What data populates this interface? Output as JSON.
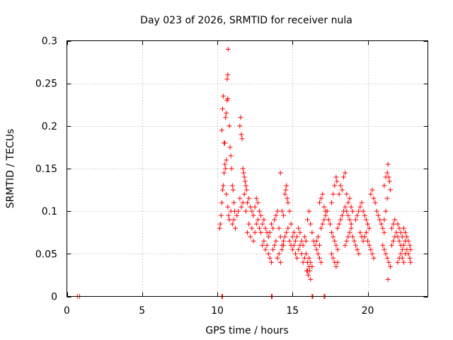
{
  "chart_data": {
    "type": "scatter",
    "title": "Day 023 of 2026, SRMTID for receiver nula",
    "xlabel": "GPS time / hours",
    "ylabel": "SRMTID / TECUs",
    "xlim": [
      0,
      24
    ],
    "ylim": [
      0,
      0.3
    ],
    "xticks": [
      0,
      5,
      10,
      15,
      20
    ],
    "xtick_labels": [
      "0",
      "5",
      "10",
      "15",
      "20"
    ],
    "yticks": [
      0,
      0.05,
      0.1,
      0.15,
      0.2,
      0.25,
      0.3
    ],
    "ytick_labels": [
      "0",
      "0.05",
      "0.1",
      "0.15",
      "0.2",
      "0.25",
      "0.3"
    ],
    "grid": true,
    "marker": "+",
    "color": "#ff0000",
    "series": [
      {
        "name": "SRMTID",
        "points": [
          [
            0.7,
            0.0
          ],
          [
            0.85,
            0.0
          ],
          [
            10.3,
            0.0
          ],
          [
            10.35,
            0.0
          ],
          [
            13.6,
            0.0
          ],
          [
            13.65,
            0.0
          ],
          [
            16.3,
            0.0
          ],
          [
            16.35,
            0.0
          ],
          [
            17.1,
            0.0
          ],
          [
            17.15,
            0.0
          ],
          [
            10.15,
            0.08
          ],
          [
            10.2,
            0.085
          ],
          [
            10.25,
            0.095
          ],
          [
            10.3,
            0.11
          ],
          [
            10.35,
            0.125
          ],
          [
            10.4,
            0.13
          ],
          [
            10.45,
            0.145
          ],
          [
            10.5,
            0.155
          ],
          [
            10.55,
            0.15
          ],
          [
            10.6,
            0.16
          ],
          [
            10.3,
            0.195
          ],
          [
            10.35,
            0.22
          ],
          [
            10.4,
            0.235
          ],
          [
            10.45,
            0.18
          ],
          [
            10.5,
            0.18
          ],
          [
            10.55,
            0.21
          ],
          [
            10.6,
            0.215
          ],
          [
            10.65,
            0.23
          ],
          [
            10.7,
            0.232
          ],
          [
            10.65,
            0.255
          ],
          [
            10.7,
            0.26
          ],
          [
            10.72,
            0.29
          ],
          [
            10.8,
            0.2
          ],
          [
            10.85,
            0.175
          ],
          [
            10.9,
            0.165
          ],
          [
            10.95,
            0.15
          ],
          [
            11.0,
            0.13
          ],
          [
            11.05,
            0.125
          ],
          [
            11.1,
            0.11
          ],
          [
            11.15,
            0.1
          ],
          [
            10.6,
            0.12
          ],
          [
            10.7,
            0.105
          ],
          [
            10.75,
            0.095
          ],
          [
            10.8,
            0.09
          ],
          [
            10.9,
            0.1
          ],
          [
            11.0,
            0.085
          ],
          [
            11.1,
            0.09
          ],
          [
            11.2,
            0.08
          ],
          [
            11.3,
            0.095
          ],
          [
            11.4,
            0.1
          ],
          [
            11.5,
            0.2
          ],
          [
            11.55,
            0.21
          ],
          [
            11.6,
            0.19
          ],
          [
            11.65,
            0.185
          ],
          [
            11.7,
            0.15
          ],
          [
            11.75,
            0.145
          ],
          [
            11.8,
            0.14
          ],
          [
            11.85,
            0.135
          ],
          [
            11.9,
            0.13
          ],
          [
            11.95,
            0.125
          ],
          [
            11.5,
            0.115
          ],
          [
            11.6,
            0.105
          ],
          [
            11.7,
            0.11
          ],
          [
            11.8,
            0.12
          ],
          [
            11.9,
            0.1
          ],
          [
            12.0,
            0.11
          ],
          [
            12.1,
            0.115
          ],
          [
            12.2,
            0.105
          ],
          [
            12.3,
            0.1
          ],
          [
            12.4,
            0.095
          ],
          [
            12.0,
            0.075
          ],
          [
            12.1,
            0.085
          ],
          [
            12.2,
            0.07
          ],
          [
            12.3,
            0.08
          ],
          [
            12.4,
            0.065
          ],
          [
            12.5,
            0.075
          ],
          [
            12.6,
            0.085
          ],
          [
            12.7,
            0.09
          ],
          [
            12.8,
            0.08
          ],
          [
            12.9,
            0.075
          ],
          [
            12.5,
            0.105
          ],
          [
            12.6,
            0.115
          ],
          [
            12.7,
            0.11
          ],
          [
            12.8,
            0.1
          ],
          [
            12.9,
            0.095
          ],
          [
            13.0,
            0.085
          ],
          [
            13.1,
            0.09
          ],
          [
            13.2,
            0.08
          ],
          [
            13.3,
            0.075
          ],
          [
            13.4,
            0.07
          ],
          [
            13.0,
            0.06
          ],
          [
            13.1,
            0.065
          ],
          [
            13.2,
            0.055
          ],
          [
            13.3,
            0.06
          ],
          [
            13.4,
            0.05
          ],
          [
            13.5,
            0.045
          ],
          [
            13.6,
            0.04
          ],
          [
            13.7,
            0.055
          ],
          [
            13.8,
            0.06
          ],
          [
            13.9,
            0.065
          ],
          [
            13.5,
            0.075
          ],
          [
            13.6,
            0.085
          ],
          [
            13.7,
            0.08
          ],
          [
            13.8,
            0.09
          ],
          [
            13.9,
            0.095
          ],
          [
            14.0,
            0.1
          ],
          [
            14.1,
            0.08
          ],
          [
            14.2,
            0.07
          ],
          [
            14.3,
            0.06
          ],
          [
            14.4,
            0.065
          ],
          [
            14.0,
            0.045
          ],
          [
            14.1,
            0.05
          ],
          [
            14.2,
            0.04
          ],
          [
            14.3,
            0.055
          ],
          [
            14.4,
            0.06
          ],
          [
            14.5,
            0.07
          ],
          [
            14.6,
            0.075
          ],
          [
            14.7,
            0.08
          ],
          [
            14.8,
            0.065
          ],
          [
            14.9,
            0.06
          ],
          [
            14.5,
            0.12
          ],
          [
            14.55,
            0.125
          ],
          [
            14.6,
            0.13
          ],
          [
            14.65,
            0.115
          ],
          [
            14.7,
            0.11
          ],
          [
            14.2,
            0.145
          ],
          [
            14.3,
            0.1
          ],
          [
            14.4,
            0.095
          ],
          [
            14.8,
            0.1
          ],
          [
            14.9,
            0.085
          ],
          [
            15.0,
            0.055
          ],
          [
            15.1,
            0.06
          ],
          [
            15.2,
            0.05
          ],
          [
            15.3,
            0.045
          ],
          [
            15.4,
            0.055
          ],
          [
            15.5,
            0.06
          ],
          [
            15.6,
            0.05
          ],
          [
            15.7,
            0.04
          ],
          [
            15.8,
            0.045
          ],
          [
            15.9,
            0.05
          ],
          [
            15.0,
            0.07
          ],
          [
            15.1,
            0.075
          ],
          [
            15.2,
            0.065
          ],
          [
            15.3,
            0.07
          ],
          [
            15.4,
            0.08
          ],
          [
            15.5,
            0.075
          ],
          [
            15.6,
            0.065
          ],
          [
            15.7,
            0.06
          ],
          [
            15.8,
            0.07
          ],
          [
            15.9,
            0.065
          ],
          [
            16.0,
            0.03
          ],
          [
            16.05,
            0.025
          ],
          [
            16.1,
            0.035
          ],
          [
            16.15,
            0.03
          ],
          [
            16.2,
            0.02
          ],
          [
            16.0,
            0.04
          ],
          [
            16.1,
            0.045
          ],
          [
            16.2,
            0.04
          ],
          [
            16.3,
            0.035
          ],
          [
            15.95,
            0.03
          ],
          [
            16.0,
            0.09
          ],
          [
            16.1,
            0.1
          ],
          [
            16.2,
            0.085
          ],
          [
            16.3,
            0.075
          ],
          [
            16.4,
            0.065
          ],
          [
            16.5,
            0.06
          ],
          [
            16.6,
            0.055
          ],
          [
            16.7,
            0.05
          ],
          [
            16.8,
            0.045
          ],
          [
            16.9,
            0.04
          ],
          [
            16.6,
            0.065
          ],
          [
            16.7,
            0.07
          ],
          [
            16.8,
            0.06
          ],
          [
            16.9,
            0.08
          ],
          [
            17.0,
            0.085
          ],
          [
            17.1,
            0.09
          ],
          [
            17.2,
            0.095
          ],
          [
            17.3,
            0.1
          ],
          [
            17.4,
            0.09
          ],
          [
            17.5,
            0.085
          ],
          [
            16.8,
            0.11
          ],
          [
            16.9,
            0.115
          ],
          [
            17.0,
            0.12
          ],
          [
            17.1,
            0.105
          ],
          [
            17.2,
            0.1
          ],
          [
            17.6,
            0.11
          ],
          [
            17.7,
            0.12
          ],
          [
            17.8,
            0.13
          ],
          [
            17.9,
            0.14
          ],
          [
            17.95,
            0.135
          ],
          [
            17.6,
            0.075
          ],
          [
            17.7,
            0.07
          ],
          [
            17.8,
            0.065
          ],
          [
            17.9,
            0.06
          ],
          [
            18.0,
            0.055
          ],
          [
            17.6,
            0.05
          ],
          [
            17.7,
            0.045
          ],
          [
            17.8,
            0.04
          ],
          [
            17.9,
            0.035
          ],
          [
            18.0,
            0.04
          ],
          [
            18.0,
            0.08
          ],
          [
            18.1,
            0.085
          ],
          [
            18.2,
            0.09
          ],
          [
            18.3,
            0.095
          ],
          [
            18.4,
            0.1
          ],
          [
            18.5,
            0.105
          ],
          [
            18.6,
            0.1
          ],
          [
            18.7,
            0.095
          ],
          [
            18.8,
            0.09
          ],
          [
            18.9,
            0.085
          ],
          [
            18.1,
            0.12
          ],
          [
            18.2,
            0.13
          ],
          [
            18.3,
            0.125
          ],
          [
            18.4,
            0.14
          ],
          [
            18.5,
            0.145
          ],
          [
            18.6,
            0.12
          ],
          [
            18.7,
            0.11
          ],
          [
            18.8,
            0.115
          ],
          [
            18.9,
            0.105
          ],
          [
            19.0,
            0.1
          ],
          [
            18.5,
            0.06
          ],
          [
            18.6,
            0.065
          ],
          [
            18.7,
            0.07
          ],
          [
            18.8,
            0.075
          ],
          [
            18.9,
            0.08
          ],
          [
            19.0,
            0.07
          ],
          [
            19.1,
            0.065
          ],
          [
            19.2,
            0.06
          ],
          [
            19.3,
            0.055
          ],
          [
            19.4,
            0.05
          ],
          [
            19.2,
            0.09
          ],
          [
            19.3,
            0.095
          ],
          [
            19.4,
            0.1
          ],
          [
            19.5,
            0.105
          ],
          [
            19.6,
            0.11
          ],
          [
            19.7,
            0.1
          ],
          [
            19.8,
            0.095
          ],
          [
            19.9,
            0.09
          ],
          [
            20.0,
            0.085
          ],
          [
            20.1,
            0.08
          ],
          [
            19.5,
            0.075
          ],
          [
            19.6,
            0.07
          ],
          [
            19.7,
            0.065
          ],
          [
            19.8,
            0.07
          ],
          [
            19.9,
            0.075
          ],
          [
            20.0,
            0.065
          ],
          [
            20.1,
            0.06
          ],
          [
            20.2,
            0.055
          ],
          [
            20.3,
            0.05
          ],
          [
            20.4,
            0.045
          ],
          [
            20.2,
            0.12
          ],
          [
            20.3,
            0.125
          ],
          [
            20.4,
            0.115
          ],
          [
            20.5,
            0.11
          ],
          [
            20.6,
            0.1
          ],
          [
            20.7,
            0.095
          ],
          [
            20.8,
            0.09
          ],
          [
            20.9,
            0.085
          ],
          [
            21.0,
            0.08
          ],
          [
            21.1,
            0.075
          ],
          [
            21.1,
            0.13
          ],
          [
            21.2,
            0.14
          ],
          [
            21.3,
            0.145
          ],
          [
            21.35,
            0.155
          ],
          [
            21.4,
            0.14
          ],
          [
            21.45,
            0.135
          ],
          [
            21.5,
            0.125
          ],
          [
            21.3,
            0.115
          ],
          [
            21.2,
            0.1
          ],
          [
            21.1,
            0.09
          ],
          [
            21.0,
            0.06
          ],
          [
            21.1,
            0.055
          ],
          [
            21.2,
            0.05
          ],
          [
            21.3,
            0.045
          ],
          [
            21.4,
            0.04
          ],
          [
            21.5,
            0.035
          ],
          [
            21.35,
            0.02
          ],
          [
            21.6,
            0.06
          ],
          [
            21.7,
            0.065
          ],
          [
            21.8,
            0.07
          ],
          [
            21.6,
            0.08
          ],
          [
            21.7,
            0.085
          ],
          [
            21.8,
            0.09
          ],
          [
            21.9,
            0.075
          ],
          [
            22.0,
            0.07
          ],
          [
            22.1,
            0.065
          ],
          [
            22.2,
            0.06
          ],
          [
            22.3,
            0.055
          ],
          [
            22.4,
            0.06
          ],
          [
            22.5,
            0.065
          ],
          [
            22.0,
            0.085
          ],
          [
            22.1,
            0.08
          ],
          [
            22.2,
            0.075
          ],
          [
            22.3,
            0.07
          ],
          [
            22.4,
            0.08
          ],
          [
            22.5,
            0.075
          ],
          [
            22.6,
            0.07
          ],
          [
            22.7,
            0.065
          ],
          [
            22.8,
            0.06
          ],
          [
            22.85,
            0.055
          ],
          [
            22.0,
            0.04
          ],
          [
            22.1,
            0.045
          ],
          [
            22.2,
            0.05
          ],
          [
            22.3,
            0.045
          ],
          [
            22.4,
            0.04
          ],
          [
            22.5,
            0.05
          ],
          [
            22.6,
            0.055
          ],
          [
            22.7,
            0.05
          ],
          [
            22.8,
            0.045
          ],
          [
            22.85,
            0.04
          ]
        ]
      }
    ]
  }
}
